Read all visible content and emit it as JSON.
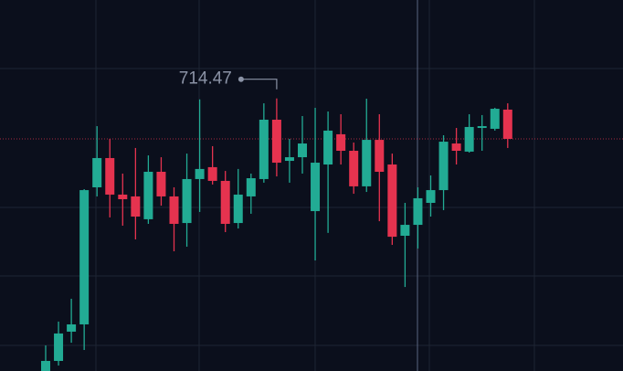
{
  "chart_data": {
    "type": "candlestick",
    "up_color": "#22ab94",
    "down_color": "#e5334f",
    "ylim": [
      695,
      721.5
    ],
    "open": [
      694.9,
      695.72,
      697.81,
      698.33,
      708.12,
      710.21,
      707.6,
      707.47,
      705.84,
      709.23,
      707.47,
      705.57,
      708.71,
      709.56,
      708.58,
      705.57,
      707.47,
      708.71,
      712.95,
      710.01,
      710.27,
      706.42,
      709.75,
      711.91,
      710.73,
      708.19,
      711.51,
      709.75,
      704.66,
      705.44,
      707.01,
      707.92,
      711.25,
      710.67,
      712.36,
      712.3,
      713.67
    ],
    "high": [
      696.83,
      698.53,
      700.16,
      707.99,
      712.49,
      711.58,
      709.1,
      710.93,
      710.4,
      710.27,
      708.12,
      710.53,
      714.4,
      711.06,
      709.29,
      709.43,
      709.1,
      714.12,
      714.47,
      711.58,
      713.21,
      713.8,
      713.54,
      713.34,
      711.32,
      714.45,
      713.34,
      710.53,
      707.01,
      708.12,
      708.97,
      711.84,
      712.36,
      713.34,
      713.28,
      713.8,
      714.12
    ],
    "low": [
      694.6,
      695.39,
      697.02,
      696.5,
      707.47,
      705.97,
      705.38,
      704.4,
      705.51,
      706.81,
      703.55,
      703.88,
      706.36,
      708.32,
      704.92,
      705.18,
      706.23,
      708.45,
      708.9,
      708.45,
      709.1,
      702.9,
      704.86,
      709.75,
      707.66,
      707.79,
      705.7,
      704.01,
      701.0,
      703.75,
      706.03,
      706.49,
      709.75,
      710.6,
      710.73,
      712.17,
      710.93
    ],
    "close": [
      695.72,
      697.68,
      698.33,
      707.92,
      710.21,
      707.6,
      707.27,
      706.03,
      709.23,
      707.47,
      705.51,
      708.71,
      709.43,
      708.58,
      705.51,
      707.6,
      708.77,
      712.95,
      709.88,
      710.27,
      711.25,
      709.88,
      712.17,
      710.73,
      708.19,
      711.51,
      709.23,
      704.59,
      705.44,
      707.34,
      707.92,
      711.38,
      710.73,
      712.43,
      712.49,
      713.73,
      711.58
    ]
  }
}
